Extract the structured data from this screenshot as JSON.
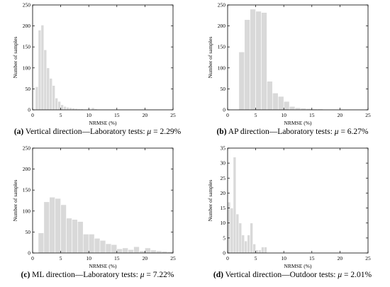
{
  "chart_data": [
    {
      "id": "a",
      "type": "bar",
      "xlabel": "NRMSE (%)",
      "ylabel": "Number of samples",
      "xlim": [
        0,
        25
      ],
      "ylim": [
        0,
        250
      ],
      "xticks": [
        0,
        5,
        10,
        15,
        20,
        25
      ],
      "yticks": [
        0,
        50,
        100,
        150,
        200,
        250
      ],
      "bin_width": 0.5,
      "x": [
        0.5,
        1.0,
        1.5,
        2.0,
        2.5,
        3.0,
        3.5,
        4.0,
        4.5,
        5.0,
        5.5,
        6.0,
        6.5,
        7.0,
        7.5,
        8.0,
        8.5,
        9.0,
        9.5,
        10.0,
        10.5,
        11.0,
        11.5
      ],
      "values": [
        55,
        190,
        202,
        143,
        100,
        75,
        58,
        28,
        20,
        12,
        8,
        6,
        5,
        4,
        3,
        2,
        2,
        1,
        1,
        1,
        5,
        2,
        1
      ],
      "caption": {
        "tag": "(a)",
        "text": " Vertical direction—Laboratory tests: ",
        "mu": "μ",
        "value": " = 2.29%"
      }
    },
    {
      "id": "b",
      "type": "bar",
      "xlabel": "NRMSE (%)",
      "ylabel": "Number of samples",
      "xlim": [
        0,
        25
      ],
      "ylim": [
        0,
        250
      ],
      "xticks": [
        0,
        5,
        10,
        15,
        20,
        25
      ],
      "yticks": [
        0,
        50,
        100,
        150,
        200,
        250
      ],
      "bin_width": 1,
      "x": [
        2,
        3,
        4,
        5,
        6,
        7,
        8,
        9,
        10,
        11,
        12,
        13,
        14,
        15,
        16,
        17,
        18,
        19,
        20,
        21,
        22,
        23
      ],
      "values": [
        138,
        215,
        240,
        235,
        232,
        68,
        40,
        32,
        20,
        8,
        5,
        4,
        3,
        2,
        2,
        1,
        1,
        1,
        1,
        1,
        1,
        0
      ],
      "caption": {
        "tag": "(b)",
        "text": " AP direction—Laboratory tests: ",
        "mu": "μ",
        "value": " = 6.27%"
      }
    },
    {
      "id": "c",
      "type": "bar",
      "xlabel": "NRMSE (%)",
      "ylabel": "Number of samples",
      "xlim": [
        0,
        25
      ],
      "ylim": [
        0,
        250
      ],
      "xticks": [
        0,
        5,
        10,
        15,
        20,
        25
      ],
      "yticks": [
        0,
        50,
        100,
        150,
        200,
        250
      ],
      "bin_width": 1,
      "x": [
        1,
        2,
        3,
        4,
        5,
        6,
        7,
        8,
        9,
        10,
        11,
        12,
        13,
        14,
        15,
        16,
        17,
        18,
        19,
        20,
        21,
        22,
        23,
        24
      ],
      "values": [
        48,
        122,
        133,
        130,
        115,
        83,
        80,
        75,
        45,
        45,
        35,
        30,
        22,
        20,
        10,
        12,
        8,
        15,
        5,
        12,
        7,
        5,
        4,
        3
      ],
      "caption": {
        "tag": "(c)",
        "text": " ML direction—Laboratory tests: ",
        "mu": "μ",
        "value": " = 7.22%"
      }
    },
    {
      "id": "d",
      "type": "bar",
      "xlabel": "NRMSE (%)",
      "ylabel": "Number of samples",
      "xlim": [
        0,
        25
      ],
      "ylim": [
        0,
        35
      ],
      "xticks": [
        0,
        5,
        10,
        15,
        20,
        25
      ],
      "yticks": [
        0,
        5,
        10,
        15,
        20,
        25,
        30,
        35
      ],
      "bin_width": 0.5,
      "x": [
        0.0,
        0.5,
        1.0,
        1.5,
        2.0,
        2.5,
        3.0,
        3.5,
        4.0,
        4.5,
        5.0,
        5.5,
        6.0,
        6.5,
        7.0,
        7.5,
        8.0,
        8.5,
        9.0
      ],
      "values": [
        17,
        15,
        32,
        13,
        10,
        6,
        4,
        6,
        10,
        3,
        1,
        1,
        2,
        2,
        0,
        0,
        0,
        0,
        0
      ],
      "caption": {
        "tag": "(d)",
        "text": " Vertical direction—Outdoor tests: ",
        "mu": "μ",
        "value": " = 2.01%"
      }
    }
  ]
}
